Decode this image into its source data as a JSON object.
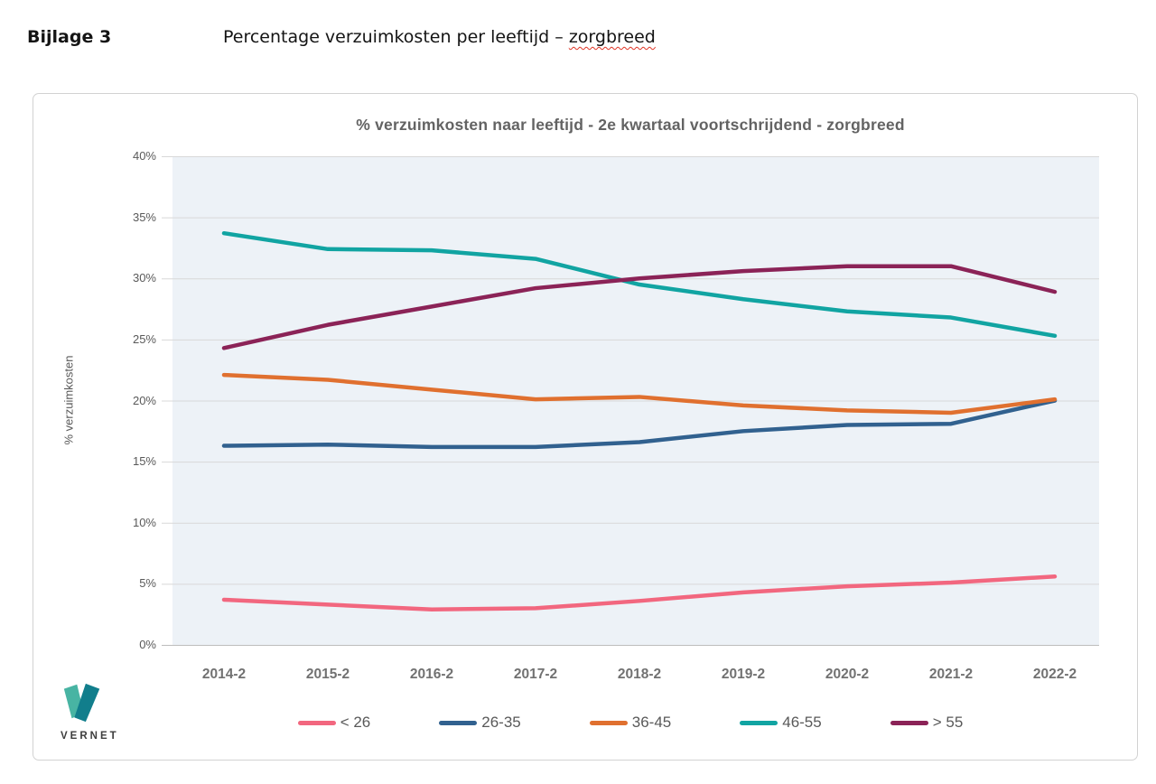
{
  "heading": {
    "label": "Bijlage 3",
    "title_prefix": "Percentage verzuimkosten per leeftijd – ",
    "title_flagged": "zorgbreed",
    "spellcheck_color": "#e03424"
  },
  "logo": {
    "text": "VERNET",
    "color_light": "#48B4A3",
    "color_dark": "#117E8C"
  },
  "chart_data": {
    "type": "line",
    "title": "% verzuimkosten naar leeftijd - 2e kwartaal voortschrijdend - zorgbreed",
    "xlabel": "",
    "ylabel": "% verzuimkosten",
    "ylim": [
      0,
      40
    ],
    "ytick_step": 5,
    "yticks": [
      "0%",
      "5%",
      "10%",
      "15%",
      "20%",
      "25%",
      "30%",
      "35%",
      "40%"
    ],
    "grid": true,
    "legend_position": "bottom",
    "plot_bg": "#EDF2F7",
    "gridline_color": "#d8d8d8",
    "axis_line_color": "#bdbdbd",
    "categories": [
      "2014-2",
      "2015-2",
      "2016-2",
      "2017-2",
      "2018-2",
      "2019-2",
      "2020-2",
      "2021-2",
      "2022-2"
    ],
    "series": [
      {
        "name": "< 26",
        "color": "#F2677F",
        "values": [
          3.7,
          3.3,
          2.9,
          3.0,
          3.6,
          4.3,
          4.8,
          5.1,
          5.6
        ]
      },
      {
        "name": "26-35",
        "color": "#31618F",
        "values": [
          16.3,
          16.4,
          16.2,
          16.2,
          16.6,
          17.5,
          18.0,
          18.1,
          20.0
        ]
      },
      {
        "name": "36-45",
        "color": "#E0702F",
        "values": [
          22.1,
          21.7,
          20.9,
          20.1,
          20.3,
          19.6,
          19.2,
          19.0,
          20.1
        ]
      },
      {
        "name": "46-55",
        "color": "#11A4A2",
        "values": [
          33.7,
          32.4,
          32.3,
          31.6,
          29.5,
          28.3,
          27.3,
          26.8,
          25.3
        ]
      },
      {
        "name": "> 55",
        "color": "#8B2357",
        "values": [
          24.3,
          26.2,
          27.7,
          29.2,
          30.0,
          30.6,
          31.0,
          31.0,
          28.9
        ]
      }
    ]
  }
}
